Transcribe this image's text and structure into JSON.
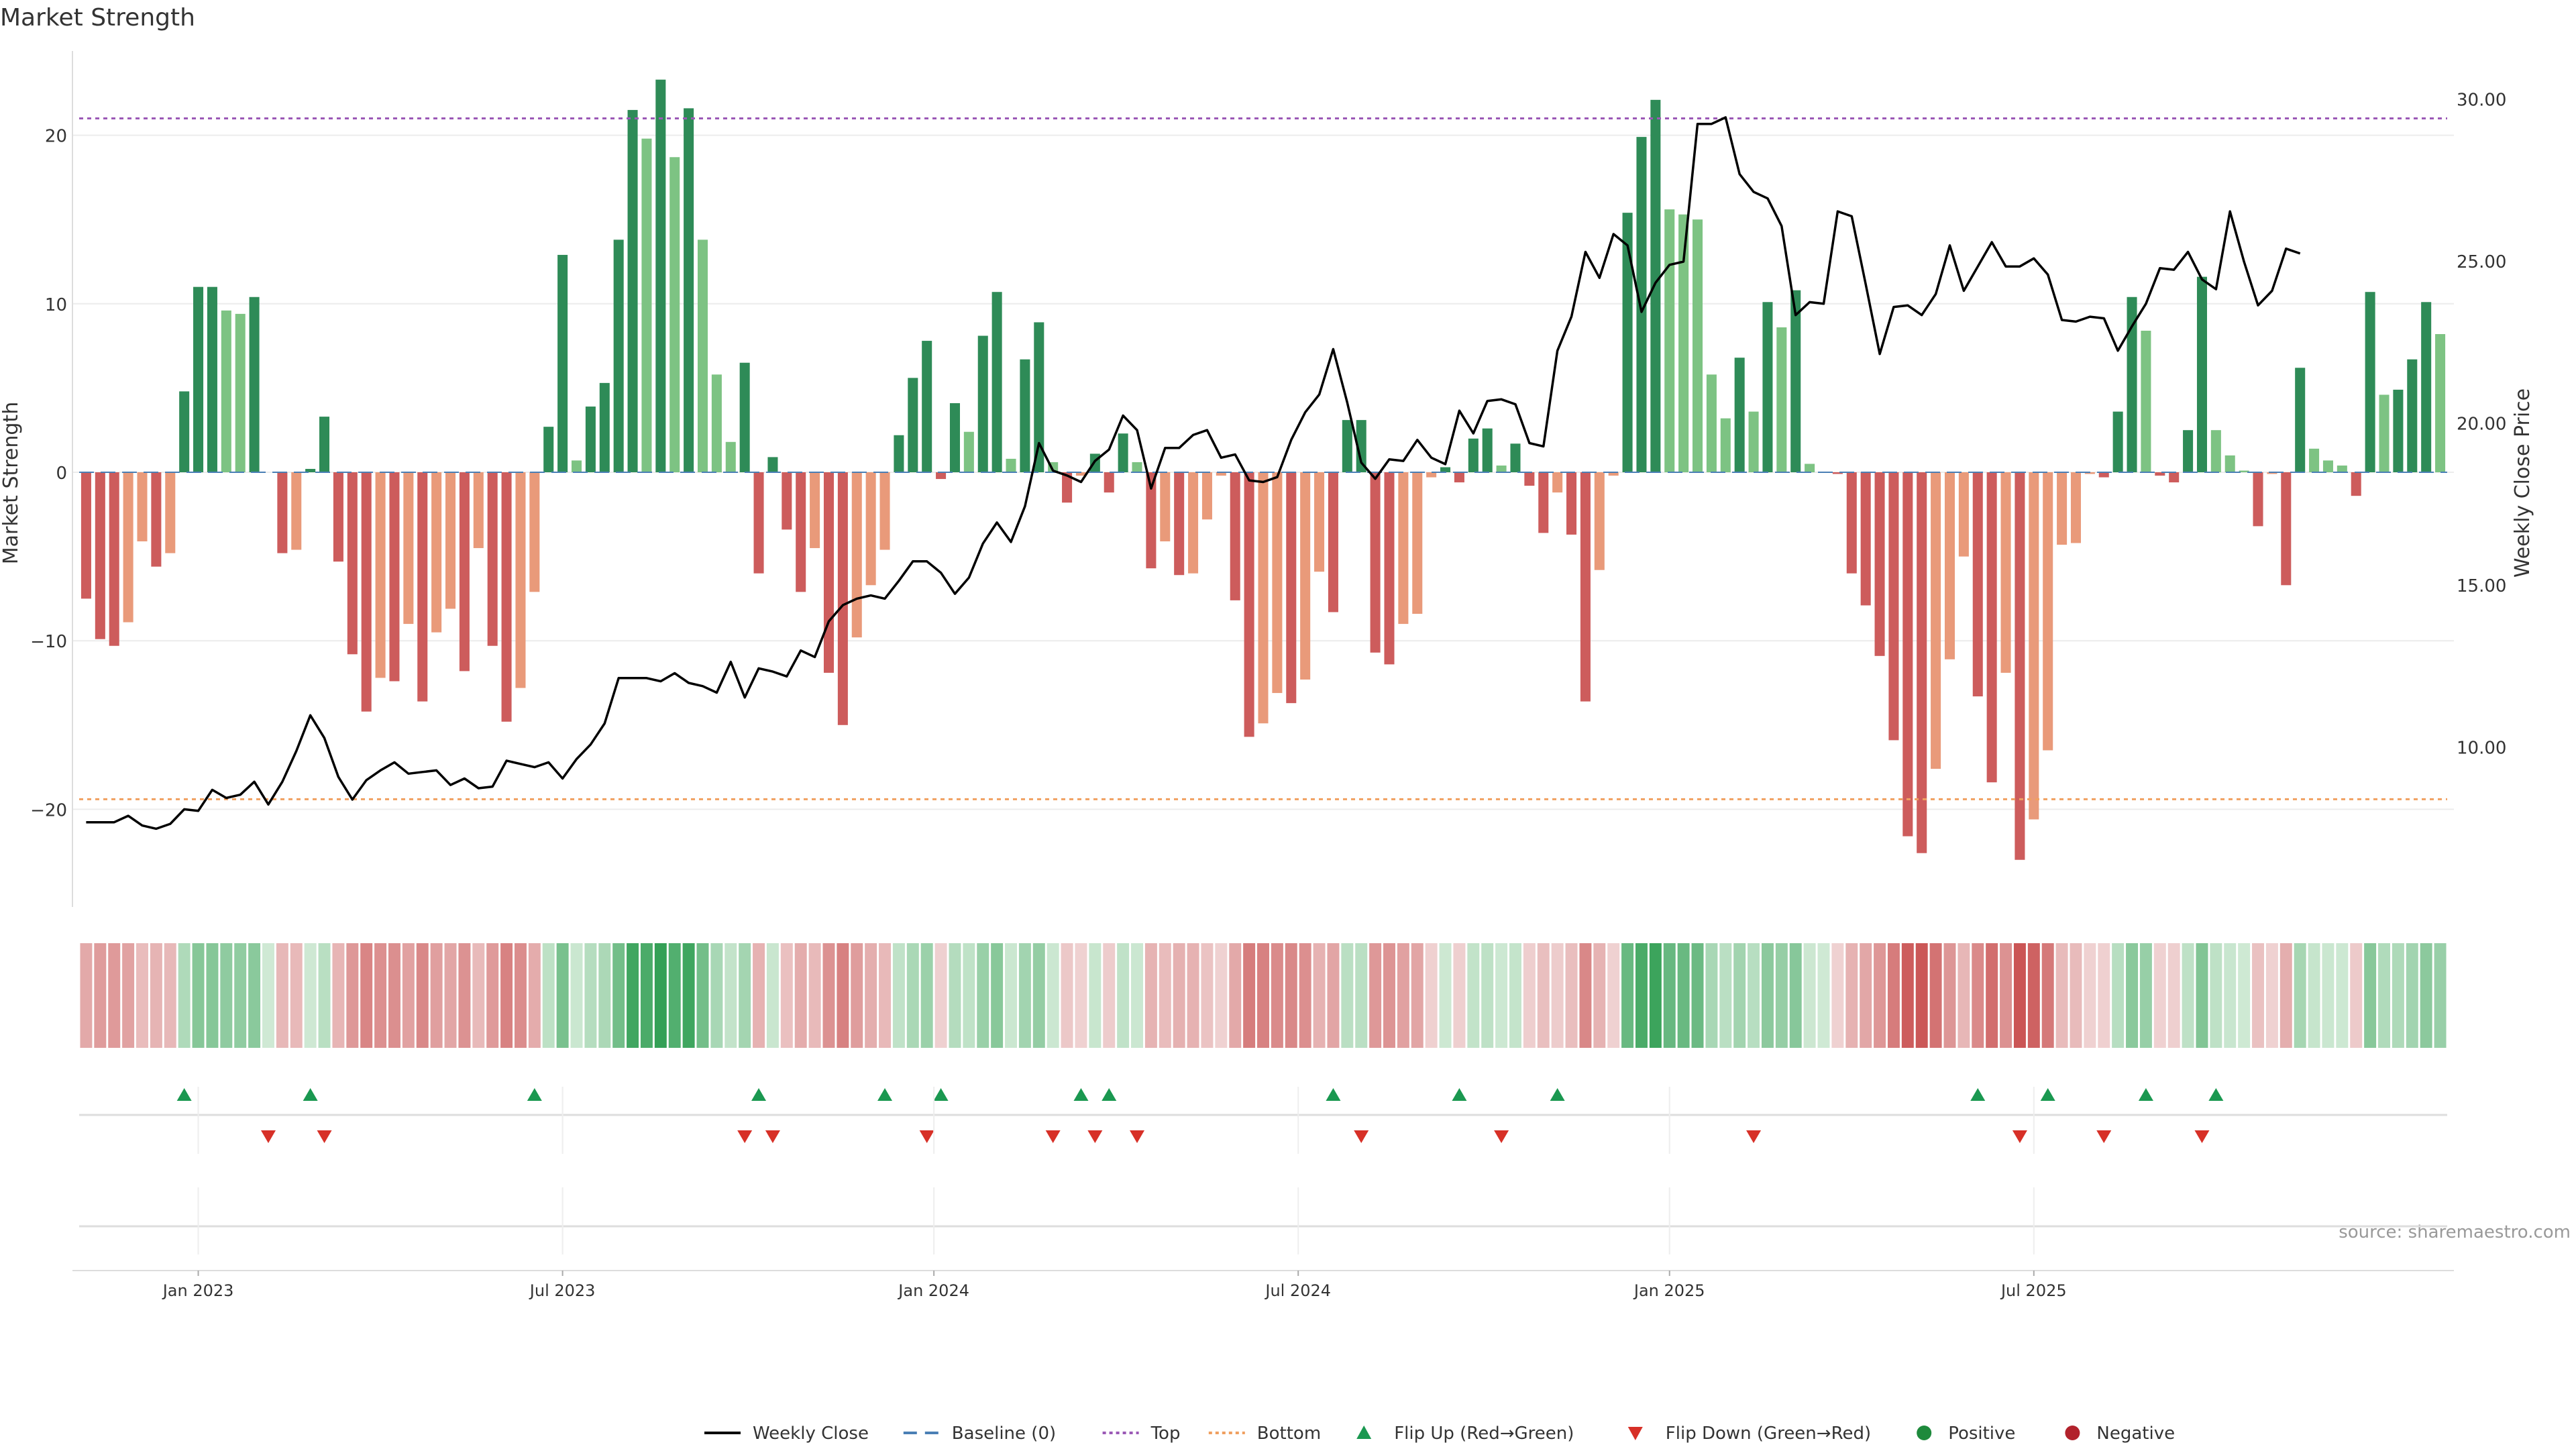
{
  "chart_data": {
    "type": "bar+line",
    "title": "Market Strength",
    "ylabel_left": "Market Strength",
    "ylabel_right": "Weekly Close Price",
    "source": "source: sharemaestro.com",
    "ylim_left": [
      -25,
      25
    ],
    "ylim_right": [
      5.5,
      31.5
    ],
    "yticks_left": [
      20,
      10,
      0,
      -10,
      -20
    ],
    "yticks_left_labels": [
      "20",
      "10",
      "0",
      "−10",
      "−20"
    ],
    "yticks_right": [
      30,
      25,
      20,
      15,
      10
    ],
    "yticks_right_labels": [
      "30.00",
      "25.00",
      "20.00",
      "15.00",
      "10.00"
    ],
    "top_line": 21,
    "bottom_line": -19.4,
    "xticks": [
      {
        "week": 8,
        "label": "Jan 2023"
      },
      {
        "week": 34,
        "label": "Jul 2023"
      },
      {
        "week": 60.5,
        "label": "Jan 2024"
      },
      {
        "week": 86.5,
        "label": "Jul 2024"
      },
      {
        "week": 113,
        "label": "Jan 2025"
      },
      {
        "week": 139,
        "label": "Jul 2025"
      }
    ],
    "strength": [
      -7.5,
      -9.9,
      -10.3,
      -8.9,
      -4.1,
      -5.6,
      -4.8,
      4.8,
      11,
      11,
      9.6,
      9.4,
      10.4,
      0,
      -4.8,
      -4.6,
      0.2,
      3.3,
      -5.3,
      -10.8,
      -14.2,
      -12.2,
      -12.4,
      -9,
      -13.6,
      -9.5,
      -8.1,
      -11.8,
      -4.5,
      -10.3,
      -14.8,
      -12.8,
      -7.1,
      2.7,
      12.9,
      0.7,
      3.9,
      5.3,
      13.8,
      21.5,
      19.8,
      23.3,
      18.7,
      21.6,
      13.8,
      5.8,
      1.8,
      6.5,
      -6,
      0.9,
      -3.4,
      -7.1,
      -4.5,
      -11.9,
      -15,
      -9.8,
      -6.7,
      -4.6,
      2.2,
      5.6,
      7.8,
      -0.4,
      4.1,
      2.4,
      8.1,
      10.7,
      0.8,
      6.7,
      8.9,
      0.6,
      -1.8,
      -0.2,
      1.1,
      -1.2,
      2.3,
      0.6,
      -5.7,
      -4.1,
      -6.1,
      -6,
      -2.8,
      -0.2,
      -7.6,
      -15.7,
      -14.9,
      -13.1,
      -13.7,
      -12.3,
      -5.9,
      -8.3,
      3.1,
      3.1,
      -10.7,
      -11.4,
      -9,
      -8.4,
      -0.3,
      0.3,
      -0.6,
      2,
      2.6,
      0.4,
      1.7,
      -0.8,
      -3.6,
      -1.2,
      -3.7,
      -13.6,
      -5.8,
      -0.2,
      15.4,
      19.9,
      22.1,
      15.6,
      15.3,
      15,
      5.8,
      3.2,
      6.8,
      3.6,
      10.1,
      8.6,
      10.8,
      0.5,
      0,
      -0.1,
      -6,
      -7.9,
      -10.9,
      -15.9,
      -21.6,
      -22.6,
      -17.6,
      -11.1,
      -5,
      -13.3,
      -18.4,
      -11.9,
      -23,
      -20.6,
      -16.5,
      -4.3,
      -4.2,
      -0.1,
      -0.3,
      3.6,
      10.4,
      8.4,
      -0.2,
      -0.6,
      2.5,
      11.6,
      2.5,
      1,
      0.1,
      -3.2,
      -0.1,
      -6.7,
      6.2,
      1.4,
      0.7,
      0.4,
      -1.4,
      10.7,
      4.6,
      4.9,
      6.7,
      10.1,
      8.2
    ],
    "close": [
      7.7,
      7.7,
      7.7,
      7.9,
      7.6,
      7.5,
      7.65,
      8.1,
      8.05,
      8.7,
      8.45,
      8.55,
      8.95,
      8.25,
      8.95,
      9.9,
      11,
      10.3,
      9.1,
      8.4,
      9.0,
      9.3,
      9.55,
      9.2,
      9.25,
      9.3,
      8.85,
      9.05,
      8.75,
      8.8,
      9.6,
      9.5,
      9.4,
      9.55,
      9.05,
      9.65,
      10.1,
      10.75,
      12.15,
      12.15,
      12.15,
      12.05,
      12.3,
      12.0,
      11.9,
      11.7,
      12.65,
      11.55,
      12.45,
      12.35,
      12.2,
      13.0,
      12.8,
      13.9,
      14.4,
      14.6,
      14.7,
      14.6,
      15.15,
      15.75,
      15.75,
      15.4,
      14.75,
      15.25,
      16.3,
      16.95,
      16.35,
      17.45,
      19.4,
      18.55,
      18.4,
      18.2,
      18.85,
      19.2,
      20.25,
      19.8,
      18.0,
      19.25,
      19.25,
      19.65,
      19.8,
      18.95,
      19.05,
      18.25,
      18.2,
      18.35,
      19.5,
      20.35,
      20.9,
      22.3,
      20.65,
      18.8,
      18.3,
      18.9,
      18.85,
      19.5,
      18.95,
      18.75,
      20.4,
      19.7,
      20.7,
      20.75,
      20.6,
      19.4,
      19.3,
      22.25,
      23.3,
      25.3,
      24.5,
      25.85,
      25.5,
      23.45,
      24.35,
      24.9,
      25.0,
      29.25,
      29.25,
      29.45,
      27.7,
      27.15,
      26.95,
      26.1,
      23.35,
      23.75,
      23.7,
      26.55,
      26.4,
      24.3,
      22.15,
      23.6,
      23.65,
      23.35,
      24.0,
      25.5,
      24.1,
      24.85,
      25.6,
      24.85,
      24.85,
      25.1,
      24.6,
      23.2,
      23.15,
      23.3,
      23.25,
      22.25,
      23.0,
      23.7,
      24.8,
      24.75,
      25.3,
      24.45,
      24.15,
      26.55,
      25.0,
      23.65,
      24.1,
      25.4,
      25.25
    ],
    "heat_labels_note": "colour strip mirrors strength sign and magnitude",
    "flip_up_weeks": [
      7,
      16,
      32,
      48,
      57,
      61,
      71,
      73,
      89,
      98,
      105,
      135,
      140,
      147,
      152
    ],
    "flip_down_weeks": [
      13,
      17,
      47,
      49,
      60,
      69,
      72,
      75,
      91,
      101,
      119,
      138,
      144,
      151
    ],
    "legend": [
      {
        "kind": "line",
        "label": "Weekly Close",
        "color": "#000000"
      },
      {
        "kind": "dash",
        "label": "Baseline (0)",
        "color": "#4a7fb5"
      },
      {
        "kind": "dot",
        "label": "Top",
        "color": "#9b59b6"
      },
      {
        "kind": "dot",
        "label": "Bottom",
        "color": "#f0a060"
      },
      {
        "kind": "tri-up",
        "label": "Flip Up (Red→Green)",
        "color": "#1a9850"
      },
      {
        "kind": "tri-down",
        "label": "Flip Down (Green→Red)",
        "color": "#d73027"
      },
      {
        "kind": "circle",
        "label": "Positive",
        "color": "#1e8a3c"
      },
      {
        "kind": "circle",
        "label": "Negative",
        "color": "#b2222c"
      }
    ]
  },
  "colors": {
    "pos_strong": "#2e8b57",
    "pos_light": "#7dc383",
    "neg_strong": "#cd5c5c",
    "neg_light": "#e99a7a",
    "top_line": "#9b59b6",
    "bottom_line": "#f0a060",
    "baseline": "#4a7fb5",
    "flip_up": "#1a9850",
    "flip_down": "#d73027",
    "close_line": "#000000"
  }
}
